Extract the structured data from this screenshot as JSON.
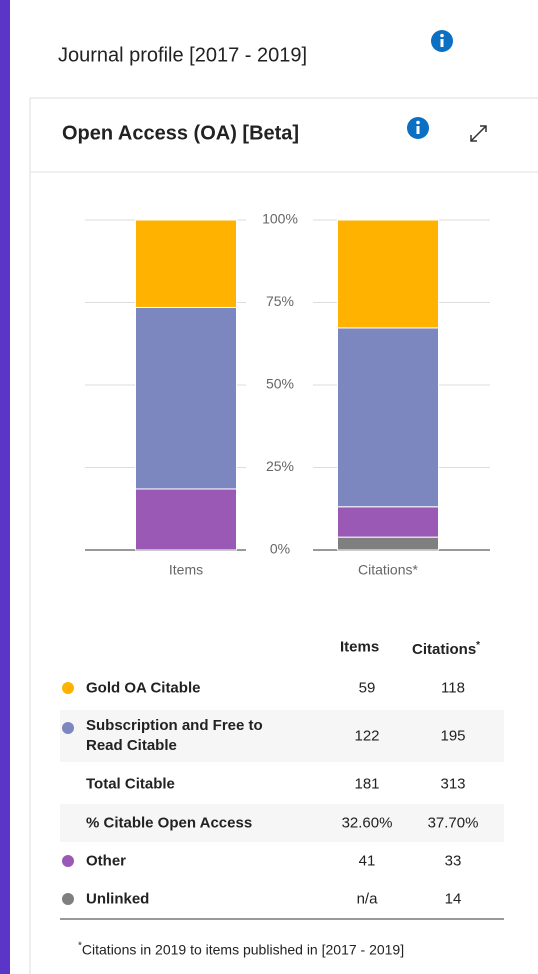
{
  "header": {
    "title": "Journal profile [2017 - 2019]"
  },
  "chart_data": {
    "type": "stacked_bar",
    "title": "Open Access (OA) [Beta]",
    "categories": [
      "Items",
      "Citations*"
    ],
    "series": [
      {
        "name": "Unlinked",
        "color": "#7f7f7f",
        "values": [
          null,
          3.9
        ]
      },
      {
        "name": "Other",
        "color": "#9b59b6",
        "values": [
          18.5,
          9.2
        ]
      },
      {
        "name": "Subscription and Free to Read Citable",
        "color": "#7d87bf",
        "values": [
          55,
          54.2
        ]
      },
      {
        "name": "Gold OA Citable",
        "color": "#ffb300",
        "values": [
          26.5,
          32.7
        ]
      }
    ],
    "ylim": [
      0,
      100
    ],
    "yticks": [
      {
        "value": 0,
        "label": "0%"
      },
      {
        "value": 25,
        "label": "25%"
      },
      {
        "value": 50,
        "label": "50%"
      },
      {
        "value": 75,
        "label": "75%"
      },
      {
        "value": 100,
        "label": "100%"
      }
    ],
    "grid": true
  },
  "table": {
    "header": {
      "items": "Items",
      "citations": "Citations",
      "mark": "*"
    },
    "series_rows": [
      {
        "items": 59,
        "citations": 118
      },
      {
        "items": 122,
        "citations": 195
      },
      {
        "items": 41,
        "citations": 33
      },
      {
        "items": "n/a",
        "citations": 14
      }
    ],
    "total": {
      "label": "Total Citable",
      "items": 181,
      "citations": 313
    },
    "percent": {
      "label": "% Citable Open Access",
      "items": "32.60%",
      "citations": "37.70%"
    }
  },
  "footnote": {
    "mark": "*",
    "text": "Citations in 2019 to items published in [2017 - 2019]"
  }
}
